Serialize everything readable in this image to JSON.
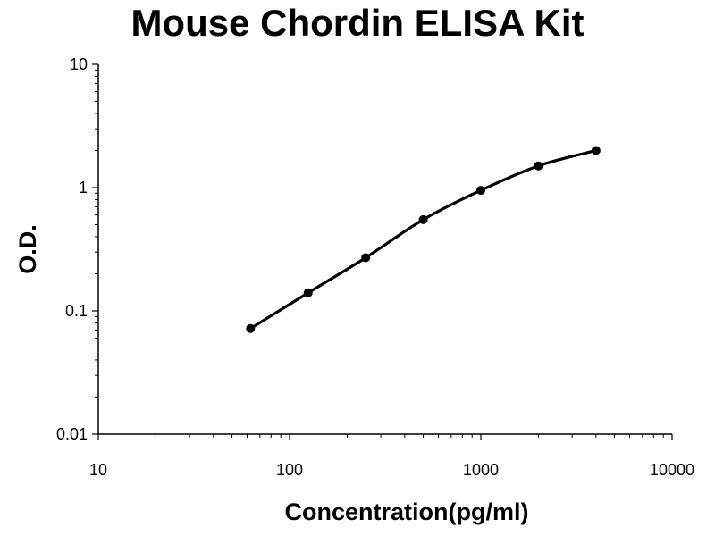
{
  "chart_data": {
    "type": "line",
    "title": "Mouse Chordin ELISA Kit",
    "xlabel": "Concentration(pg/ml)",
    "ylabel": "O.D.",
    "xscale": "log",
    "yscale": "log",
    "xlim": [
      10,
      10000
    ],
    "ylim": [
      0.01,
      10
    ],
    "x_tick_labels": [
      "10",
      "100",
      "1000",
      "10000"
    ],
    "y_tick_labels": [
      "0.01",
      "0.1",
      "1",
      "10"
    ],
    "grid": false,
    "legend": "none",
    "series": [
      {
        "x": [
          62.5,
          125,
          250,
          500,
          1000,
          2000,
          4000
        ],
        "y": [
          0.072,
          0.14,
          0.27,
          0.55,
          0.95,
          1.5,
          2.0
        ],
        "color": "#000000",
        "marker": "circle",
        "smooth": true
      }
    ]
  }
}
